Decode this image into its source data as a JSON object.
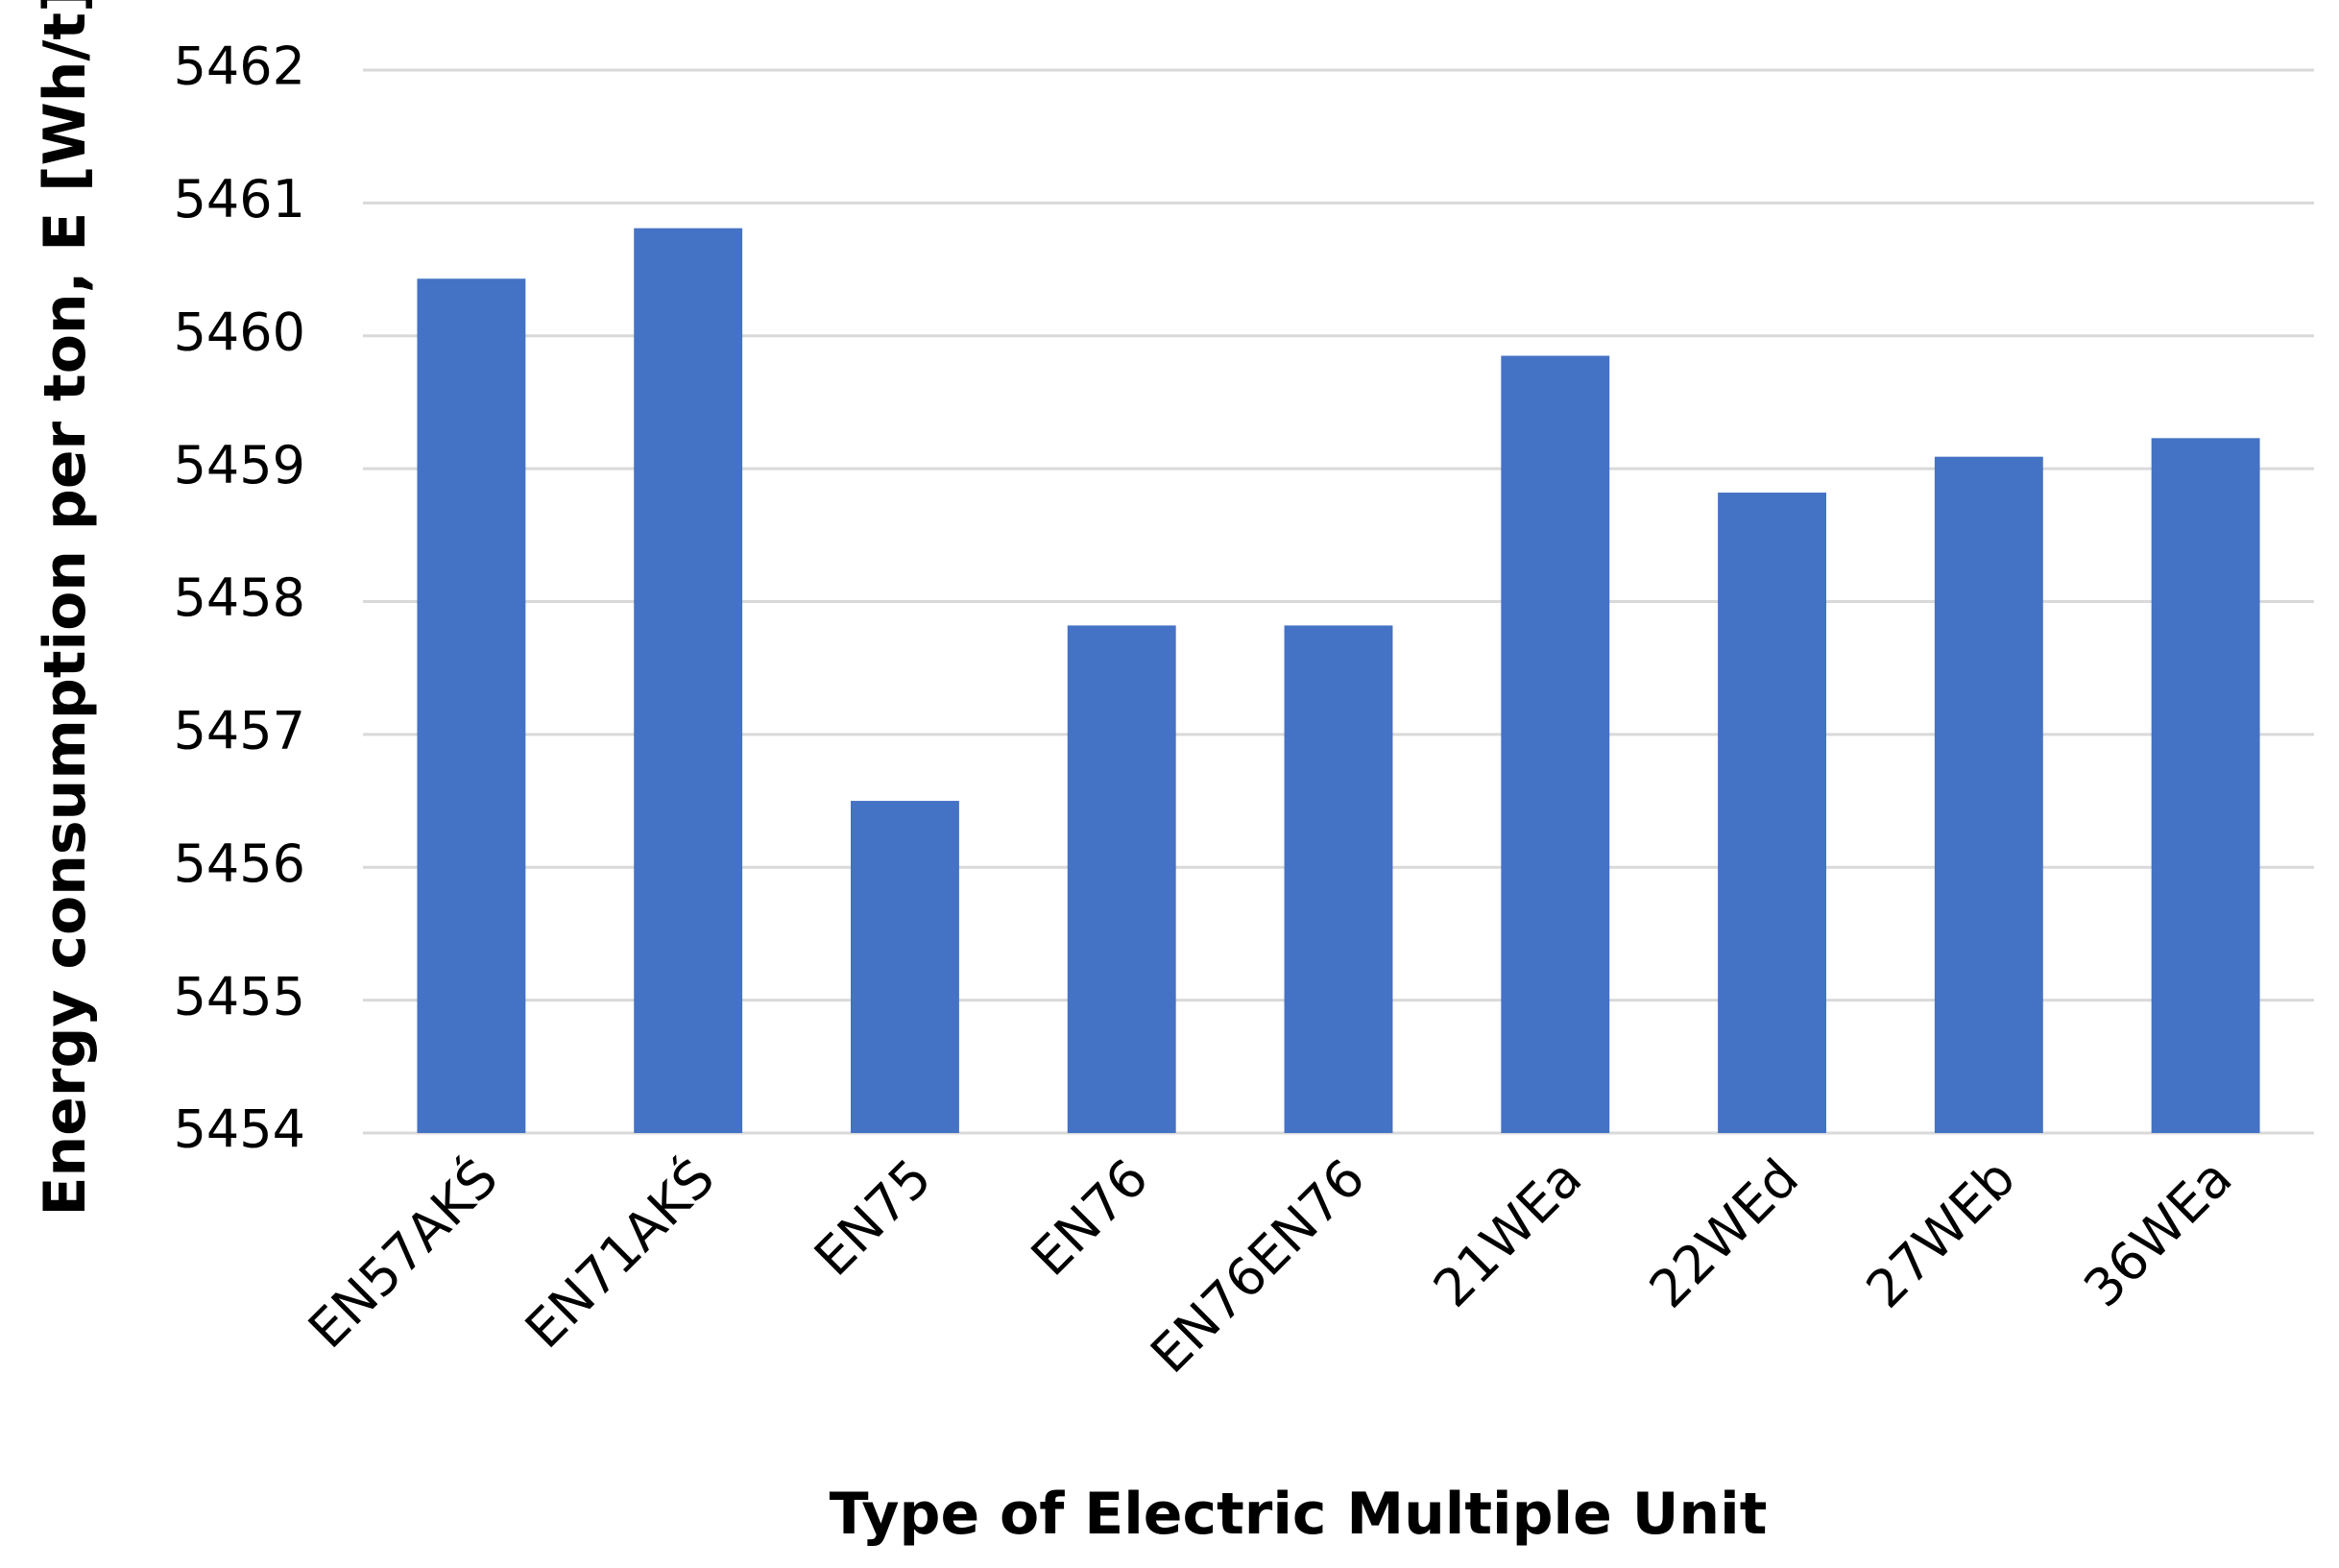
{
  "chart_data": {
    "type": "bar",
    "x_label": "Type of Electric Multiple Unit",
    "y_label": "Energy consumption per ton, E [Wh/t]",
    "categories": [
      "EN57AKŚ",
      "EN71AKŚ",
      "EN75",
      "EN76",
      "EN76EN76",
      "21WEa",
      "22WEd",
      "27WEb",
      "36WEa"
    ],
    "values": [
      5460.43,
      5460.81,
      5456.5,
      5457.82,
      5457.82,
      5459.85,
      5458.82,
      5459.09,
      5459.23
    ],
    "color": "#4472c4",
    "ylim": [
      5454,
      5462
    ],
    "yticks": [
      5454,
      5455,
      5456,
      5457,
      5458,
      5459,
      5460,
      5461,
      5462
    ],
    "grid": true
  }
}
